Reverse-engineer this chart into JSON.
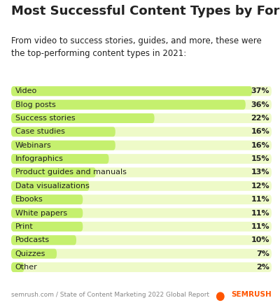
{
  "title": "Most Successful Content Types by Format",
  "subtitle": "From video to success stories, guides, and more, these were\nthe top-performing content types in 2021:",
  "categories": [
    "Video",
    "Blog posts",
    "Success stories",
    "Case studies",
    "Webinars",
    "Infographics",
    "Product guides and manuals",
    "Data visualizations",
    "Ebooks",
    "White papers",
    "Print",
    "Podcasts",
    "Quizzes",
    "Other"
  ],
  "values": [
    37,
    36,
    22,
    16,
    16,
    15,
    13,
    12,
    11,
    11,
    11,
    10,
    7,
    2
  ],
  "bar_color": "#c5f06e",
  "bg_light": "#eefac8",
  "text_color": "#222222",
  "bg_color": "#ffffff",
  "footer": "semrush.com / State of Content Marketing 2022 Global Report",
  "semrush_color": "#ff5500",
  "xlim_max": 40,
  "title_fontsize": 13,
  "subtitle_fontsize": 8.5,
  "bar_label_fontsize": 8,
  "category_fontsize": 8,
  "footer_fontsize": 6.5
}
